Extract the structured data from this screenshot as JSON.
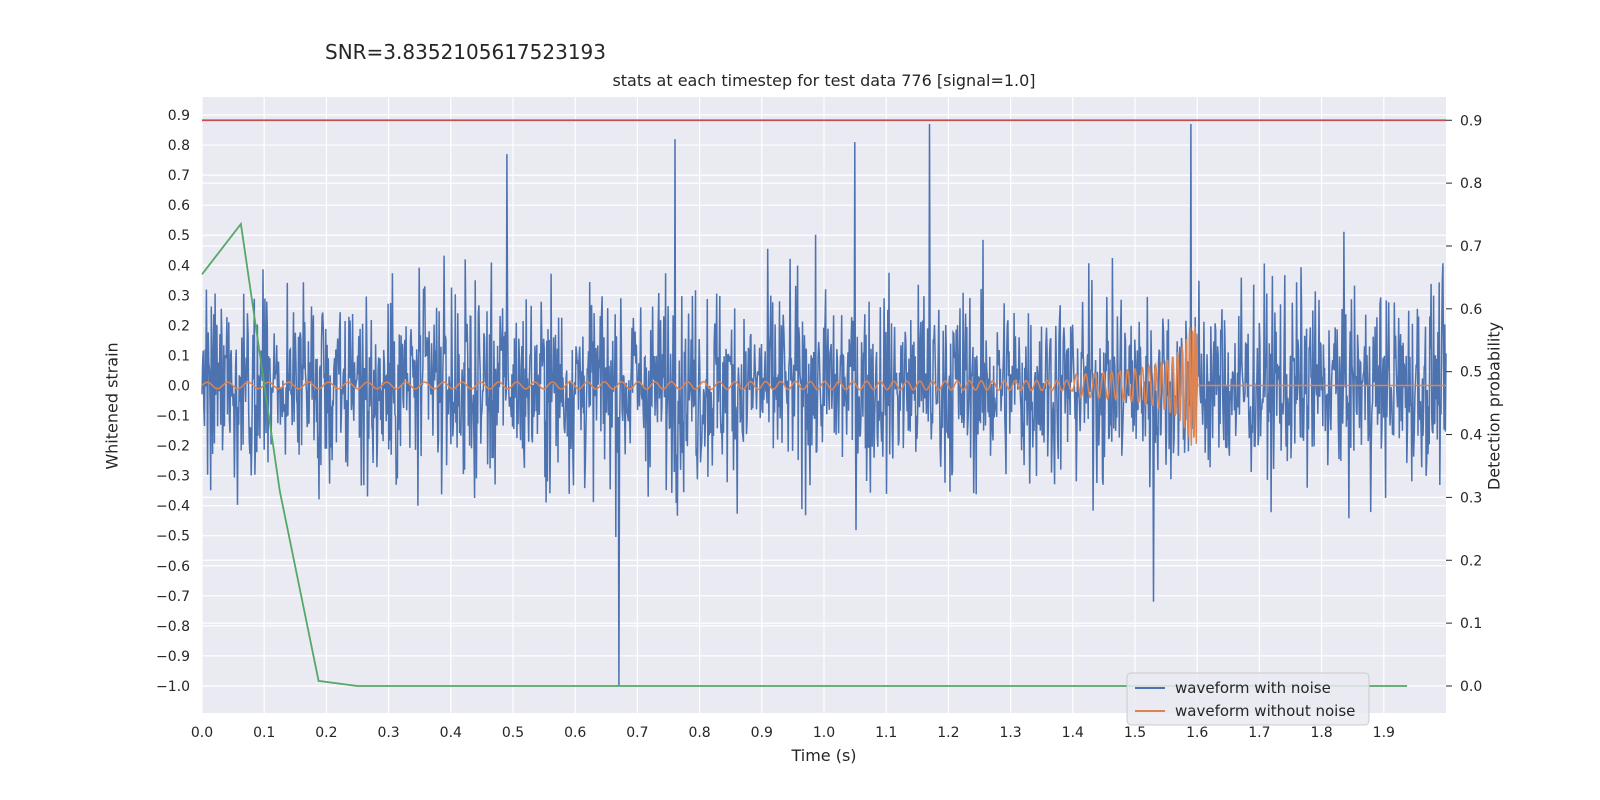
{
  "chart_data": {
    "type": "line",
    "suptitle": "SNR=3.8352105617523193",
    "title": "stats at each timestep for test data 776 [signal=1.0]",
    "xlabel": "Time (s)",
    "ylabel": "Whitened strain",
    "y2label": "Detection probability",
    "xlim": [
      0.0,
      2.0
    ],
    "ylim": [
      -1.09,
      0.96
    ],
    "y2lim": [
      -0.043,
      0.937
    ],
    "x_ticks": [
      "0.0",
      "0.1",
      "0.2",
      "0.3",
      "0.4",
      "0.5",
      "0.6",
      "0.7",
      "0.8",
      "0.9",
      "1.0",
      "1.1",
      "1.2",
      "1.3",
      "1.4",
      "1.5",
      "1.6",
      "1.7",
      "1.8",
      "1.9"
    ],
    "y_ticks": [
      "0.9",
      "0.8",
      "0.7",
      "0.6",
      "0.5",
      "0.4",
      "0.3",
      "0.2",
      "0.1",
      "0.0",
      "−0.1",
      "−0.2",
      "−0.3",
      "−0.4",
      "−0.5",
      "−0.6",
      "−0.7",
      "−0.8",
      "−0.9",
      "−1.0"
    ],
    "y2_ticks": [
      "0.9",
      "0.8",
      "0.7",
      "0.6",
      "0.5",
      "0.4",
      "0.3",
      "0.2",
      "0.1",
      "0.0"
    ],
    "grid": true,
    "legend_position": "lower-right",
    "series": [
      {
        "name": "waveform with noise",
        "color": "#4c72b0",
        "axis": "left",
        "kind": "noise",
        "x_range": [
          0.0,
          2.0
        ],
        "y_range": [
          -1.0,
          0.87
        ],
        "peaks": [
          [
            0.67,
            -1.0
          ],
          [
            1.17,
            0.87
          ],
          [
            1.59,
            0.87
          ],
          [
            0.76,
            0.82
          ],
          [
            0.49,
            0.77
          ],
          [
            1.05,
            0.81
          ],
          [
            1.53,
            -0.72
          ]
        ]
      },
      {
        "name": "waveform without noise",
        "color": "#dd8452",
        "axis": "left",
        "kind": "chirp",
        "x_range": [
          0.0,
          2.0
        ],
        "merger_time": 1.6,
        "peak_amplitude": 0.2
      },
      {
        "name": "",
        "color": "#55a868",
        "axis": "right",
        "kind": "line",
        "x": [
          0.0,
          0.0625,
          0.125,
          0.1875,
          0.25,
          0.3125,
          0.375,
          0.4375,
          0.5,
          0.5625,
          0.625,
          0.6875,
          0.75,
          0.8125,
          0.875,
          0.9375,
          1.0,
          1.0625,
          1.125,
          1.1875,
          1.25,
          1.3125,
          1.375,
          1.4375,
          1.5,
          1.5625,
          1.625,
          1.6875,
          1.75,
          1.8125,
          1.875,
          1.9375
        ],
        "y": [
          0.655,
          0.735,
          0.31,
          0.008,
          0.0,
          0.0,
          0.0,
          0.0,
          0.0,
          0.0,
          0.0,
          0.0,
          0.0,
          0.0,
          0.0,
          0.0,
          0.0,
          0.0,
          0.0,
          0.0,
          0.0,
          0.0,
          0.0,
          0.0,
          0.0,
          0.0,
          0.0,
          0.0,
          0.0,
          0.0,
          0.0,
          0.0
        ]
      },
      {
        "name": "",
        "color": "#c44e52",
        "axis": "right",
        "kind": "hline",
        "value": 0.9
      }
    ]
  }
}
